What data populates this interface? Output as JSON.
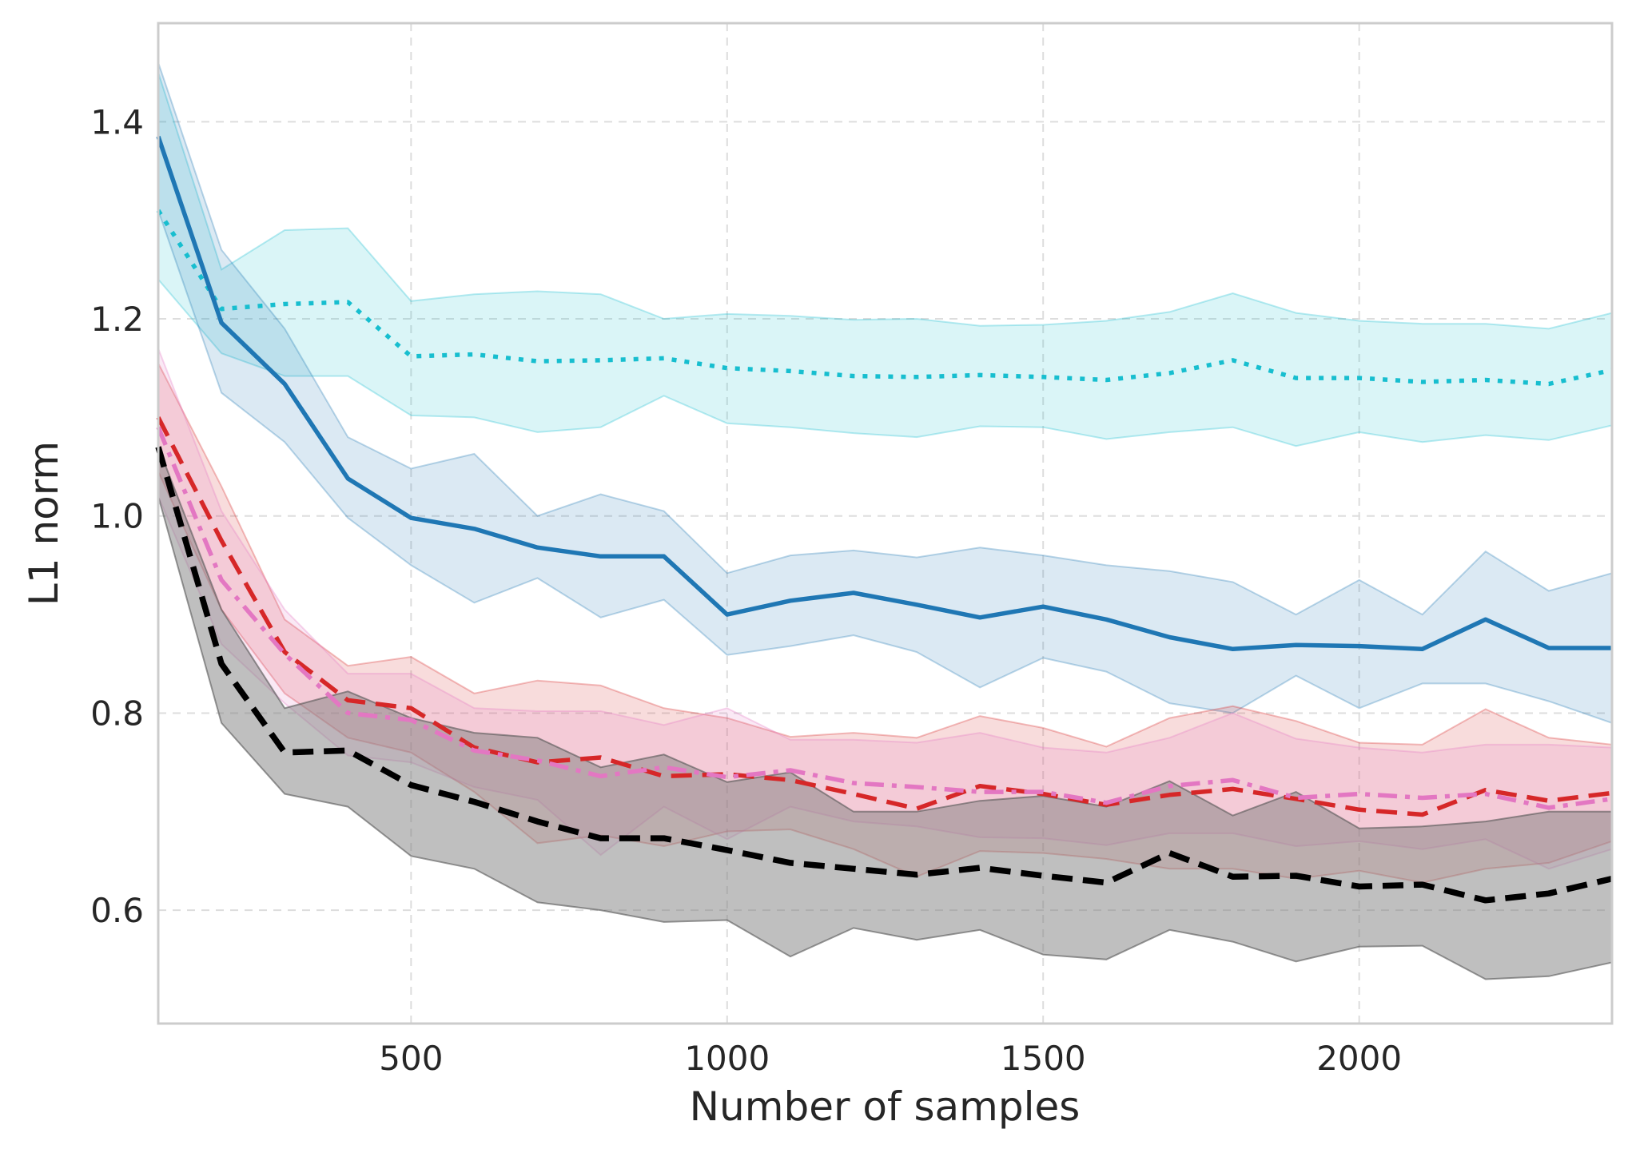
{
  "chart_data": {
    "type": "line",
    "title": "",
    "xlabel": "Number of samples",
    "ylabel": "L1 norm",
    "xlim": [
      100,
      2400
    ],
    "ylim": [
      0.485,
      1.5
    ],
    "grid": true,
    "x_ticks": [
      500,
      1000,
      1500,
      2000
    ],
    "x_tick_labels": [
      "500",
      "1000",
      "1500",
      "2000"
    ],
    "y_ticks": [
      0.6,
      0.8,
      1.0,
      1.2,
      1.4
    ],
    "y_tick_labels": [
      "0.6",
      "0.8",
      "1.0",
      "1.2",
      "1.4"
    ],
    "x": [
      100,
      200,
      300,
      400,
      500,
      600,
      700,
      800,
      900,
      1000,
      1100,
      1200,
      1300,
      1400,
      1500,
      1600,
      1700,
      1800,
      1900,
      2000,
      2100,
      2200,
      2300,
      2400
    ],
    "series": [
      {
        "name": "cyan",
        "color": "#17becf",
        "dash": "dotted",
        "values": [
          1.31,
          1.21,
          1.215,
          1.217,
          1.162,
          1.164,
          1.157,
          1.158,
          1.16,
          1.15,
          1.147,
          1.142,
          1.141,
          1.143,
          1.141,
          1.138,
          1.145,
          1.158,
          1.14,
          1.14,
          1.136,
          1.138,
          1.134,
          1.148
        ],
        "upper": [
          1.45,
          1.25,
          1.29,
          1.292,
          1.218,
          1.225,
          1.228,
          1.225,
          1.2,
          1.205,
          1.203,
          1.199,
          1.2,
          1.193,
          1.194,
          1.198,
          1.207,
          1.226,
          1.206,
          1.198,
          1.195,
          1.195,
          1.19,
          1.206
        ],
        "lower": [
          1.24,
          1.165,
          1.142,
          1.142,
          1.102,
          1.1,
          1.085,
          1.09,
          1.122,
          1.094,
          1.09,
          1.084,
          1.08,
          1.091,
          1.09,
          1.078,
          1.085,
          1.09,
          1.071,
          1.085,
          1.075,
          1.082,
          1.077,
          1.092
        ]
      },
      {
        "name": "blue",
        "color": "#1f77b4",
        "dash": "solid",
        "values": [
          1.385,
          1.196,
          1.134,
          1.038,
          0.998,
          0.987,
          0.968,
          0.959,
          0.959,
          0.9,
          0.914,
          0.922,
          0.91,
          0.897,
          0.908,
          0.895,
          0.877,
          0.865,
          0.869,
          0.868,
          0.865,
          0.895,
          0.866,
          0.866
        ],
        "upper": [
          1.46,
          1.27,
          1.19,
          1.08,
          1.048,
          1.063,
          1.0,
          1.022,
          1.005,
          0.942,
          0.96,
          0.965,
          0.958,
          0.968,
          0.96,
          0.95,
          0.944,
          0.933,
          0.9,
          0.935,
          0.9,
          0.964,
          0.924,
          0.942
        ],
        "lower": [
          1.31,
          1.125,
          1.075,
          0.998,
          0.95,
          0.912,
          0.937,
          0.897,
          0.915,
          0.859,
          0.868,
          0.879,
          0.862,
          0.826,
          0.856,
          0.842,
          0.81,
          0.8,
          0.838,
          0.805,
          0.83,
          0.83,
          0.812,
          0.79
        ]
      },
      {
        "name": "red",
        "color": "#d62728",
        "dash": "dashed",
        "values": [
          1.1,
          0.975,
          0.862,
          0.813,
          0.805,
          0.765,
          0.75,
          0.755,
          0.736,
          0.738,
          0.732,
          0.718,
          0.703,
          0.726,
          0.718,
          0.707,
          0.717,
          0.723,
          0.713,
          0.702,
          0.697,
          0.722,
          0.711,
          0.719
        ],
        "upper": [
          1.155,
          1.03,
          0.895,
          0.848,
          0.857,
          0.82,
          0.833,
          0.828,
          0.805,
          0.795,
          0.776,
          0.78,
          0.775,
          0.797,
          0.785,
          0.766,
          0.795,
          0.807,
          0.792,
          0.77,
          0.768,
          0.804,
          0.775,
          0.768
        ],
        "lower": [
          1.045,
          0.905,
          0.82,
          0.775,
          0.76,
          0.72,
          0.668,
          0.676,
          0.665,
          0.68,
          0.682,
          0.662,
          0.634,
          0.66,
          0.658,
          0.652,
          0.642,
          0.642,
          0.632,
          0.64,
          0.628,
          0.642,
          0.648,
          0.67
        ]
      },
      {
        "name": "pink",
        "color": "#e377c2",
        "dash": "dashdot",
        "values": [
          1.09,
          0.935,
          0.86,
          0.8,
          0.793,
          0.762,
          0.752,
          0.736,
          0.745,
          0.735,
          0.742,
          0.729,
          0.725,
          0.72,
          0.72,
          0.709,
          0.726,
          0.732,
          0.714,
          0.718,
          0.714,
          0.718,
          0.704,
          0.713
        ],
        "upper": [
          1.17,
          1.005,
          0.905,
          0.84,
          0.84,
          0.805,
          0.802,
          0.802,
          0.788,
          0.805,
          0.773,
          0.773,
          0.77,
          0.78,
          0.765,
          0.76,
          0.775,
          0.8,
          0.774,
          0.765,
          0.76,
          0.768,
          0.768,
          0.765
        ],
        "lower": [
          1.02,
          0.87,
          0.81,
          0.757,
          0.75,
          0.725,
          0.712,
          0.656,
          0.705,
          0.672,
          0.705,
          0.69,
          0.685,
          0.674,
          0.673,
          0.666,
          0.678,
          0.678,
          0.665,
          0.67,
          0.662,
          0.672,
          0.642,
          0.662
        ]
      },
      {
        "name": "black",
        "color": "#000000",
        "dash": "dashed",
        "values": [
          1.07,
          0.85,
          0.76,
          0.762,
          0.727,
          0.71,
          0.69,
          0.673,
          0.673,
          0.661,
          0.648,
          0.642,
          0.636,
          0.643,
          0.635,
          0.628,
          0.658,
          0.634,
          0.635,
          0.624,
          0.626,
          0.61,
          0.617,
          0.632
        ],
        "upper": [
          1.07,
          0.905,
          0.805,
          0.822,
          0.795,
          0.78,
          0.775,
          0.745,
          0.758,
          0.73,
          0.74,
          0.7,
          0.7,
          0.711,
          0.716,
          0.705,
          0.731,
          0.696,
          0.72,
          0.683,
          0.685,
          0.69,
          0.7,
          0.7
        ],
        "lower": [
          1.02,
          0.79,
          0.718,
          0.705,
          0.655,
          0.642,
          0.608,
          0.6,
          0.588,
          0.59,
          0.553,
          0.582,
          0.57,
          0.58,
          0.555,
          0.55,
          0.58,
          0.568,
          0.548,
          0.563,
          0.564,
          0.53,
          0.533,
          0.547
        ]
      }
    ]
  }
}
